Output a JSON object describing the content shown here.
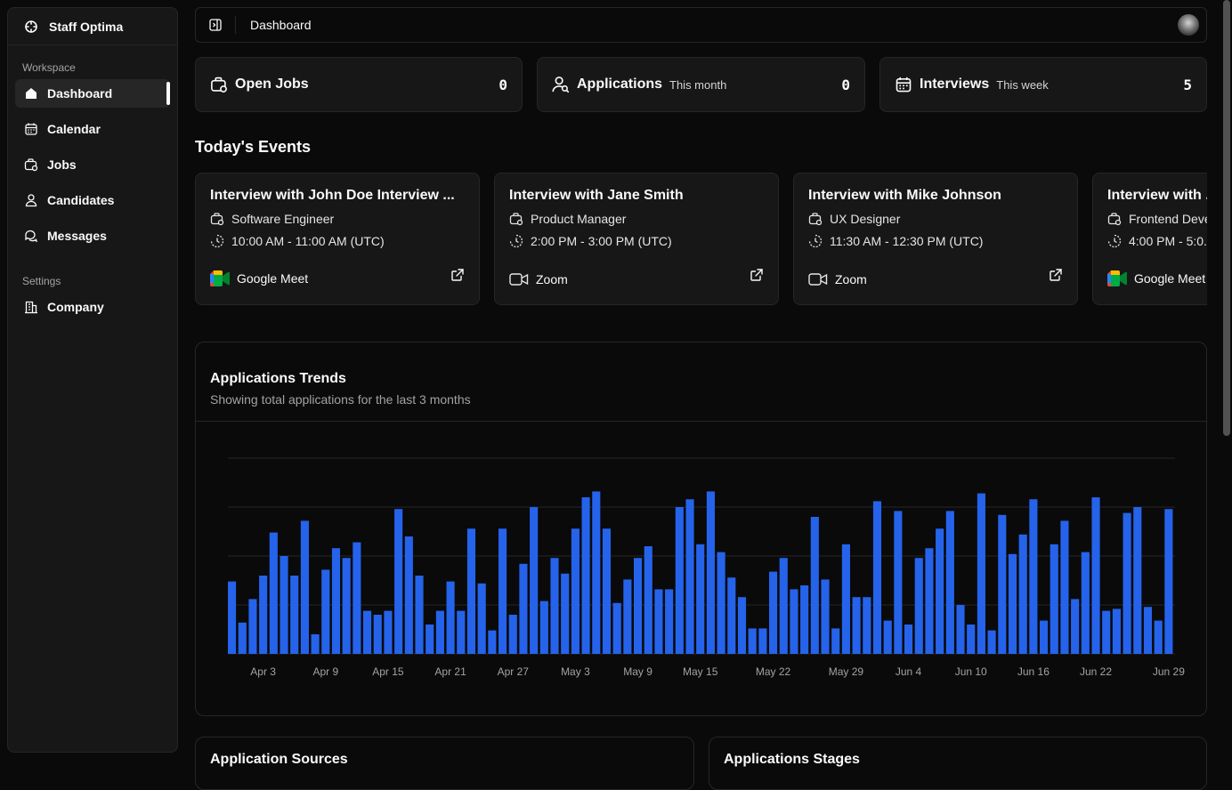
{
  "sidebar": {
    "brand": "Staff Optima",
    "workspace_label": "Workspace",
    "settings_label": "Settings",
    "items": [
      {
        "label": "Dashboard",
        "icon": "home-icon"
      },
      {
        "label": "Calendar",
        "icon": "calendar-icon"
      },
      {
        "label": "Jobs",
        "icon": "briefcase-icon"
      },
      {
        "label": "Candidates",
        "icon": "user-icon"
      },
      {
        "label": "Messages",
        "icon": "messages-icon"
      }
    ],
    "settings_items": [
      {
        "label": "Company",
        "icon": "building-icon"
      }
    ]
  },
  "header": {
    "breadcrumb": "Dashboard"
  },
  "stats": [
    {
      "title": "Open Jobs",
      "subtitle": "",
      "value": "0",
      "icon": "briefcase-icon"
    },
    {
      "title": "Applications",
      "subtitle": "This month",
      "value": "0",
      "icon": "user-search-icon"
    },
    {
      "title": "Interviews",
      "subtitle": "This week",
      "value": "5",
      "icon": "calendar-icon"
    }
  ],
  "events_title": "Today's Events",
  "events": [
    {
      "title": "Interview with John Doe Interview ...",
      "role": "Software Engineer",
      "time": "10:00 AM - 11:00 AM (UTC)",
      "platform": "Google Meet",
      "platform_icon": "google-meet-icon"
    },
    {
      "title": "Interview with Jane Smith",
      "role": "Product Manager",
      "time": "2:00 PM - 3:00 PM (UTC)",
      "platform": "Zoom",
      "platform_icon": "video-icon"
    },
    {
      "title": "Interview with Mike Johnson",
      "role": "UX Designer",
      "time": "11:30 AM - 12:30 PM (UTC)",
      "platform": "Zoom",
      "platform_icon": "video-icon"
    },
    {
      "title": "Interview with ...",
      "role": "Frontend Deve...",
      "time": "4:00 PM - 5:0...",
      "platform": "Google Meet",
      "platform_icon": "google-meet-icon"
    }
  ],
  "chart": {
    "title": "Applications Trends",
    "subtitle": "Showing total applications for the last 3 months"
  },
  "chart_data": {
    "type": "bar",
    "ylim": [
      0,
      100
    ],
    "grid": true,
    "color": "#2563eb",
    "tick_labels": [
      "Apr 3",
      "Apr 9",
      "Apr 15",
      "Apr 21",
      "Apr 27",
      "May 3",
      "May 9",
      "May 15",
      "May 22",
      "May 29",
      "Jun 4",
      "Jun 10",
      "Jun 16",
      "Jun 22",
      "Jun 29"
    ],
    "tick_index": [
      3,
      9,
      15,
      21,
      27,
      33,
      39,
      45,
      52,
      59,
      65,
      71,
      77,
      83,
      90
    ],
    "values": [
      37,
      16,
      28,
      40,
      62,
      50,
      40,
      68,
      10,
      43,
      54,
      49,
      57,
      22,
      20,
      22,
      74,
      60,
      40,
      15,
      22,
      37,
      22,
      64,
      36,
      12,
      64,
      20,
      46,
      75,
      27,
      49,
      41,
      64,
      80,
      83,
      64,
      26,
      38,
      49,
      55,
      33,
      33,
      75,
      79,
      56,
      83,
      52,
      39,
      29,
      13,
      13,
      42,
      49,
      33,
      35,
      70,
      38,
      13,
      56,
      29,
      29,
      78,
      17,
      73,
      15,
      49,
      54,
      64,
      73,
      25,
      15,
      82,
      12,
      71,
      51,
      61,
      79,
      17,
      56,
      68,
      28,
      52,
      80,
      22,
      23,
      72,
      75,
      24,
      17,
      74
    ]
  },
  "bottom": {
    "sources_title": "Application Sources",
    "stages_title": "Applications Stages"
  }
}
